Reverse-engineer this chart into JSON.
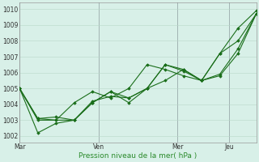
{
  "bg_color": "#cce8dc",
  "plot_bg": "#d8f0e8",
  "grid_color": "#b8d8c8",
  "vline_color": "#888899",
  "line_color": "#1a6e1a",
  "marker_color": "#1a6e1a",
  "xlabel": "Pression niveau de la mer( hPa )",
  "xlabel_color": "#2a8a2a",
  "ylim": [
    1001.6,
    1010.4
  ],
  "yticks": [
    1002,
    1003,
    1004,
    1005,
    1006,
    1007,
    1008,
    1009,
    1010
  ],
  "xtick_labels": [
    "Mar",
    "Ven",
    "Mer",
    "Jeu"
  ],
  "series": [
    [
      1005.0,
      1003.0,
      1003.0,
      1004.1,
      1004.8,
      1004.4,
      1005.0,
      1006.5,
      1006.2,
      1005.8,
      1005.5,
      1007.2,
      1008.0,
      1009.7
    ],
    [
      1005.0,
      1002.2,
      1002.8,
      1003.0,
      1004.1,
      1004.8,
      1004.1,
      1005.0,
      1005.5,
      1006.2,
      1005.5,
      1007.2,
      1008.8,
      1009.9
    ],
    [
      1005.0,
      1003.1,
      1003.0,
      1003.0,
      1004.1,
      1004.8,
      1004.4,
      1005.0,
      1006.5,
      1006.2,
      1005.5,
      1005.9,
      1007.5,
      1009.7
    ],
    [
      1005.0,
      1003.1,
      1003.2,
      1003.0,
      1004.2,
      1004.5,
      1004.4,
      1005.0,
      1006.5,
      1006.1,
      1005.5,
      1005.8,
      1007.2,
      1009.7
    ]
  ],
  "n_points": 14,
  "xmin": 0,
  "xmax": 13,
  "xtick_positions": [
    0,
    4.33,
    8.67,
    11.5
  ],
  "fig_width": 3.2,
  "fig_height": 2.0,
  "dpi": 100
}
